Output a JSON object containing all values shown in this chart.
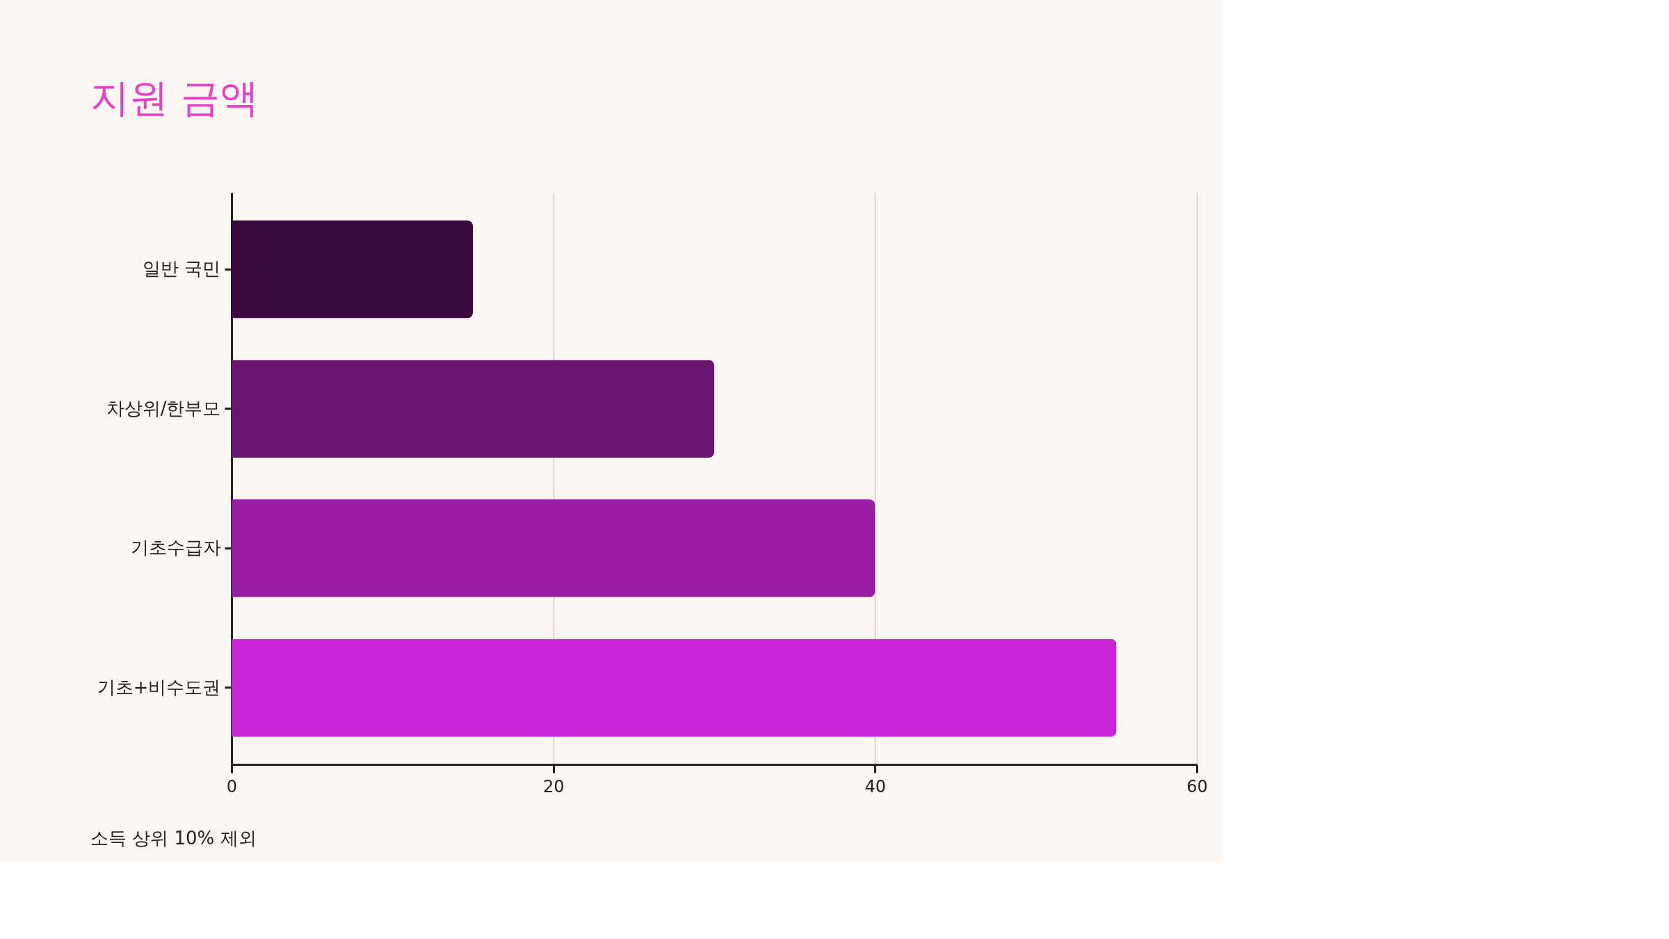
{
  "chart_data": {
    "type": "bar",
    "orientation": "horizontal",
    "title": "지원 금액",
    "categories": [
      "일반 국민",
      "차상위/한부모",
      "기초수급자",
      "기초+비수도권"
    ],
    "values": [
      15,
      30,
      40,
      55
    ],
    "colors": [
      "#3d0a3f",
      "#6b1470",
      "#9b1fa6",
      "#c826d8"
    ],
    "xlim": [
      0,
      60
    ],
    "xticks": [
      0,
      20,
      40,
      60
    ],
    "grid": "x",
    "annotations": [
      "소득 상위 10% 제외"
    ]
  }
}
